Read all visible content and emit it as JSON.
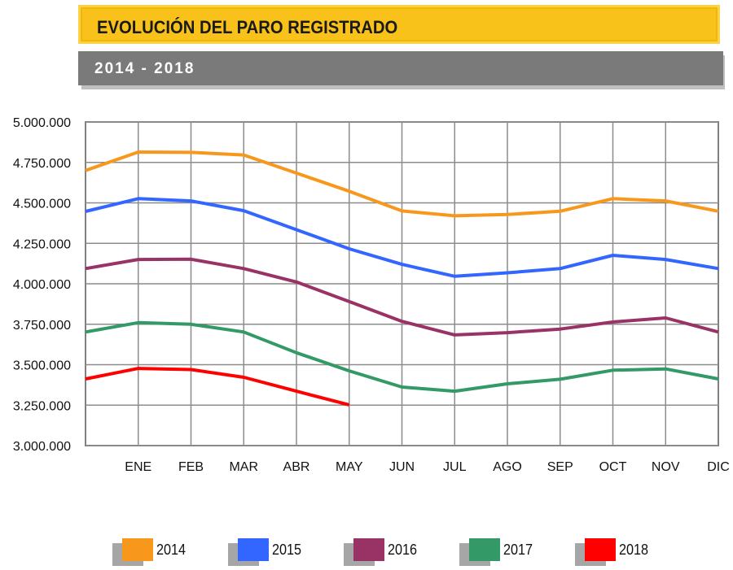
{
  "header": {
    "title": "EVOLUCIÓN DEL PARO REGISTRADO",
    "subtitle": "2014 - 2018"
  },
  "chart_data": {
    "type": "line",
    "title": "EVOLUCIÓN DEL PARO REGISTRADO",
    "subtitle": "2014 - 2018",
    "xlabel": "",
    "ylabel": "",
    "categories": [
      "ENE",
      "FEB",
      "MAR",
      "ABR",
      "MAY",
      "JUN",
      "JUL",
      "AGO",
      "SEP",
      "OCT",
      "NOV",
      "DIC"
    ],
    "ylim": [
      3000000,
      5000000
    ],
    "yticks": [
      3000000,
      3250000,
      3500000,
      3750000,
      4000000,
      4250000,
      4500000,
      4750000,
      5000000
    ],
    "ytick_labels": [
      "3.000.000",
      "3.250.000",
      "3.500.000",
      "3.750.000",
      "4.000.000",
      "4.250.000",
      "4.500.000",
      "4.750.000",
      "5.000.000"
    ],
    "grid": true,
    "legend": "bottom",
    "series": [
      {
        "name": "2014",
        "color": "#f7981d",
        "start": 4700000,
        "values": [
          4814000,
          4812000,
          4796000,
          4684000,
          4572000,
          4450000,
          4420000,
          4428000,
          4448000,
          4526000,
          4512000,
          4448000
        ]
      },
      {
        "name": "2015",
        "color": "#3366ff",
        "start": 4447000,
        "values": [
          4526000,
          4512000,
          4452000,
          4334000,
          4216000,
          4120000,
          4046000,
          4068000,
          4094000,
          4176000,
          4150000,
          4094000
        ]
      },
      {
        "name": "2016",
        "color": "#993366",
        "start": 4094000,
        "values": [
          4150000,
          4152000,
          4094000,
          4011000,
          3890000,
          3768000,
          3684000,
          3698000,
          3720000,
          3764000,
          3789000,
          3702000
        ]
      },
      {
        "name": "2017",
        "color": "#339966",
        "start": 3702000,
        "values": [
          3760000,
          3750000,
          3702000,
          3574000,
          3462000,
          3362000,
          3336000,
          3382000,
          3410000,
          3466000,
          3474000,
          3412000
        ]
      },
      {
        "name": "2018",
        "color": "#ff0000",
        "start": 3412000,
        "values": [
          3477000,
          3470000,
          3422000,
          3336000,
          3252000,
          null,
          null,
          null,
          null,
          null,
          null,
          null
        ]
      }
    ]
  }
}
